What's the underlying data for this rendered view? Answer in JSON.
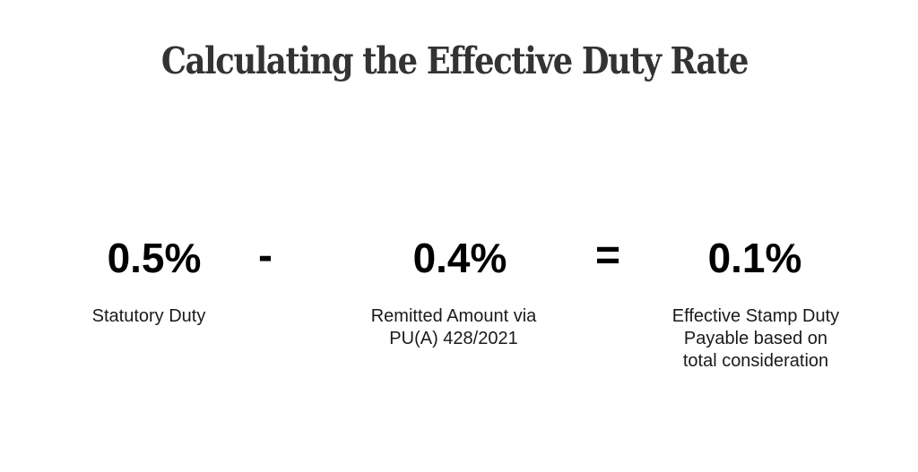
{
  "title": "Calculating the Effective Duty Rate",
  "terms": {
    "statutory": {
      "value": "0.5%",
      "label": "Statutory Duty"
    },
    "remitted": {
      "value": "0.4%",
      "label": "Remitted Amount via\nPU(A) 428/2021"
    },
    "effective": {
      "value": "0.1%",
      "label": "Effective Stamp Duty\nPayable based on\ntotal consideration"
    }
  },
  "operators": {
    "minus": "-",
    "equals": "="
  }
}
